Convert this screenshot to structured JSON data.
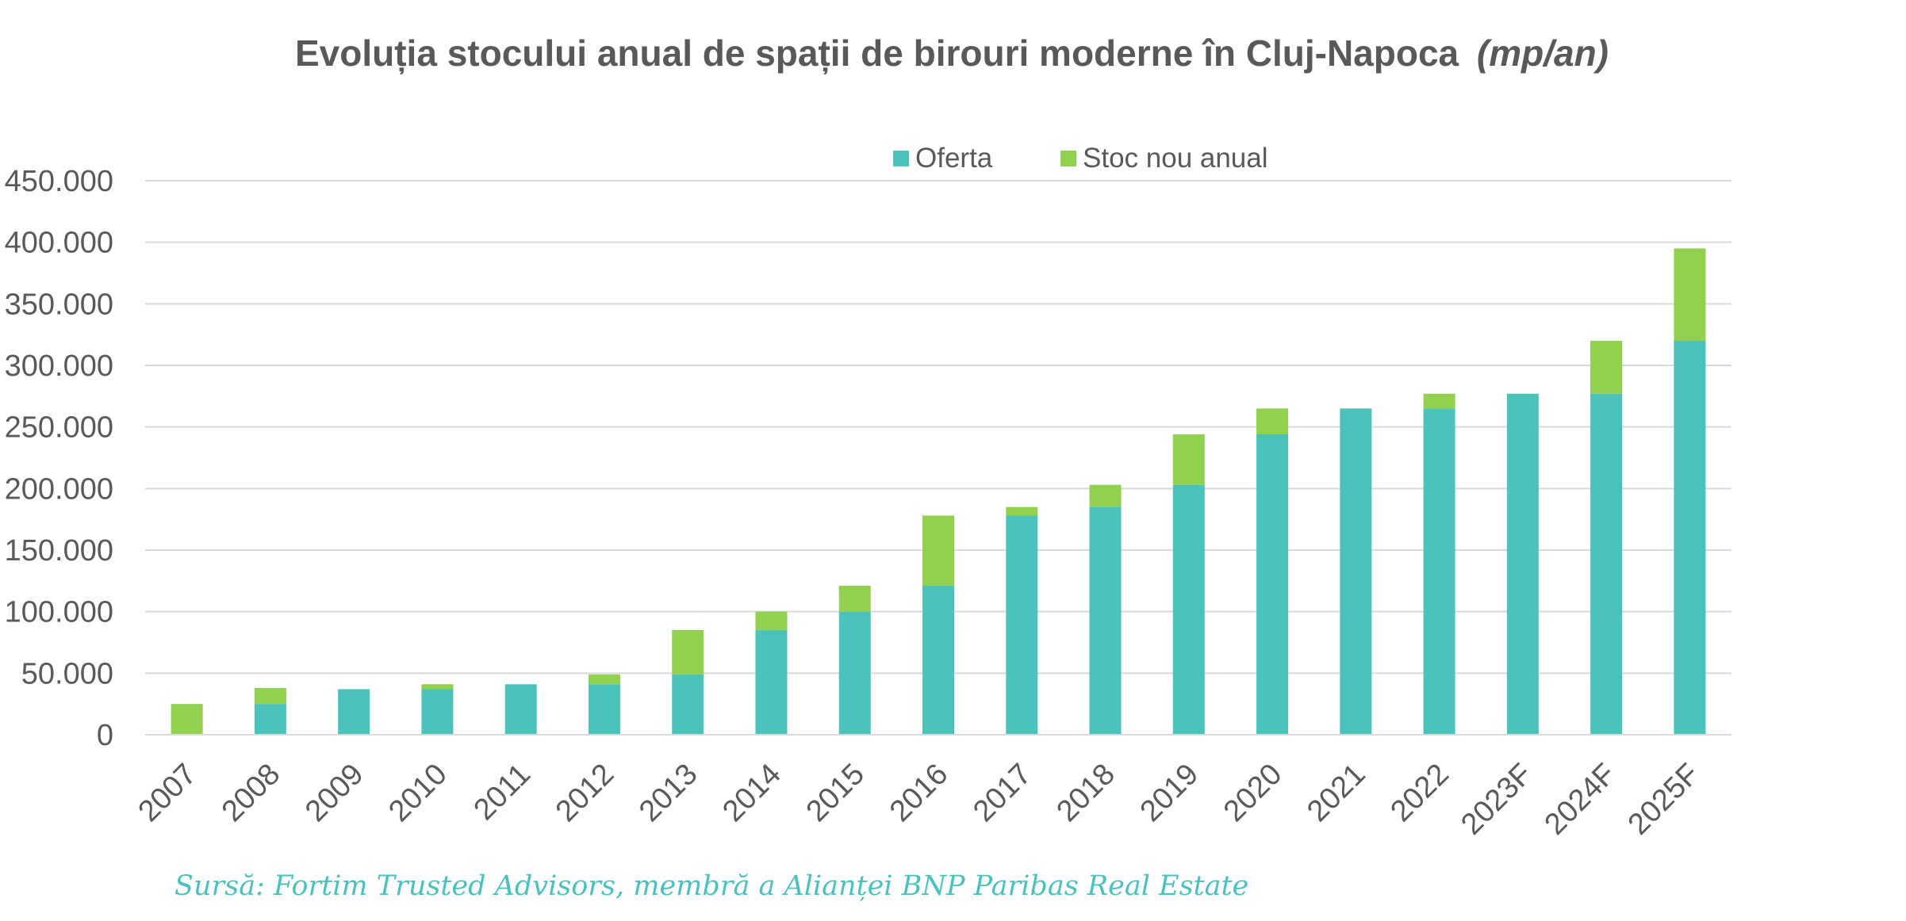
{
  "chart_data": {
    "type": "bar",
    "stacked": true,
    "title": "Evoluția stocului anual de spații de birouri moderne în Cluj-Napoca",
    "title_unit": "(mp/an)",
    "xlabel": "",
    "ylabel": "",
    "ylim": [
      0,
      450000
    ],
    "yticks": [
      0,
      50000,
      100000,
      150000,
      200000,
      250000,
      300000,
      350000,
      400000,
      450000
    ],
    "ytick_labels": [
      "0",
      "50.000",
      "100.000",
      "150.000",
      "200.000",
      "250.000",
      "300.000",
      "350.000",
      "400.000",
      "450.000"
    ],
    "grid": true,
    "legend_position": "top-center",
    "categories": [
      "2007",
      "2008",
      "2009",
      "2010",
      "2011",
      "2012",
      "2013",
      "2014",
      "2015",
      "2016",
      "2017",
      "2018",
      "2019",
      "2020",
      "2021",
      "2022",
      "2023F",
      "2024F",
      "2025F"
    ],
    "series": [
      {
        "name": "Oferta",
        "color": "#4bc2bc",
        "values": [
          0,
          25000,
          37000,
          37000,
          41000,
          41000,
          49000,
          85000,
          100000,
          121000,
          178000,
          185000,
          203000,
          244000,
          265000,
          265000,
          277000,
          277000,
          320000
        ]
      },
      {
        "name": "Stoc nou anual",
        "color": "#92d050",
        "values": [
          25000,
          13000,
          0,
          4000,
          0,
          8000,
          36000,
          15000,
          21000,
          57000,
          7000,
          18000,
          41000,
          21000,
          0,
          12000,
          0,
          43000,
          75000
        ]
      }
    ],
    "source": "Sursă: Fortim Trusted Advisors, membră a Alianței BNP Paribas Real Estate"
  }
}
